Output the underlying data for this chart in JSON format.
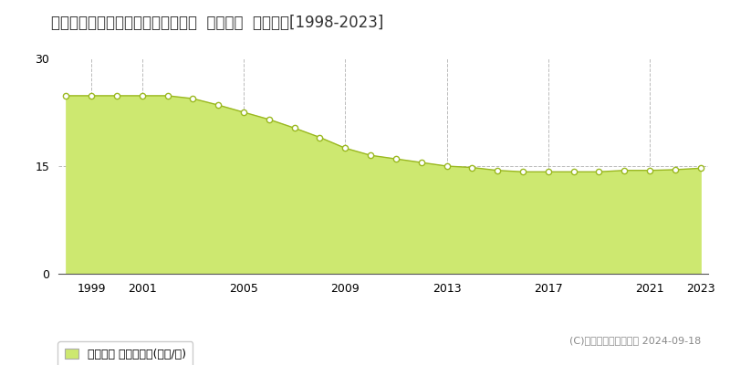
{
  "title": "青森県八戸市高州２丁目５３番５外  公示地価  地価推移[1998-2023]",
  "years": [
    1998,
    1999,
    2000,
    2001,
    2002,
    2003,
    2004,
    2005,
    2006,
    2007,
    2008,
    2009,
    2010,
    2011,
    2012,
    2013,
    2014,
    2015,
    2016,
    2017,
    2018,
    2019,
    2020,
    2021,
    2022,
    2023
  ],
  "values": [
    24.8,
    24.8,
    24.8,
    24.8,
    24.8,
    24.4,
    23.5,
    22.5,
    21.5,
    20.3,
    19.0,
    17.5,
    16.5,
    16.0,
    15.5,
    15.0,
    14.8,
    14.4,
    14.2,
    14.2,
    14.2,
    14.2,
    14.4,
    14.4,
    14.5,
    14.7
  ],
  "fill_color": "#cde870",
  "line_color": "#9ab820",
  "marker_color": "#ffffff",
  "marker_edge_color": "#9ab820",
  "background_color": "#ffffff",
  "grid_color": "#bbbbbb",
  "ylim": [
    0,
    30
  ],
  "yticks": [
    0,
    15,
    30
  ],
  "xticks": [
    1999,
    2001,
    2005,
    2009,
    2013,
    2017,
    2021,
    2023
  ],
  "vgrid_ticks": [
    1999,
    2001,
    2005,
    2009,
    2013,
    2017,
    2021
  ],
  "legend_label": "公示地価 平均坪単価(万円/坪)",
  "legend_marker_color": "#cde870",
  "copyright_text": "(C)土地価格ドットコム 2024-09-18",
  "title_fontsize": 12,
  "tick_fontsize": 9,
  "legend_fontsize": 9
}
